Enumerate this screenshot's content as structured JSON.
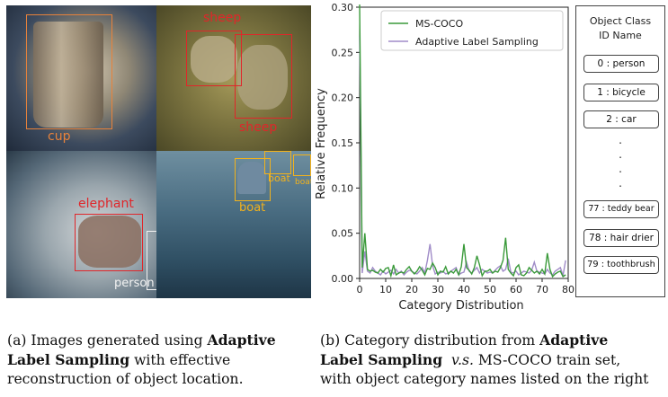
{
  "images_panel": {
    "tiles": [
      {
        "name": "cup",
        "detections": [
          {
            "label": "cup",
            "color": "#e8823a"
          }
        ]
      },
      {
        "name": "sheep",
        "detections": [
          {
            "label": "sheep",
            "color": "#e0262a"
          },
          {
            "label": "sheep",
            "color": "#e0262a"
          }
        ]
      },
      {
        "name": "elephant",
        "detections": [
          {
            "label": "elephant",
            "color": "#e0262a"
          },
          {
            "label": "person",
            "color": "#f2f2f2"
          }
        ]
      },
      {
        "name": "boat",
        "detections": [
          {
            "label": "boat",
            "color": "#f2b21c"
          },
          {
            "label": "boat",
            "color": "#f2b21c"
          },
          {
            "label": "boat",
            "color": "#f2b21c"
          }
        ]
      }
    ]
  },
  "chart_data": {
    "type": "line",
    "ylabel": "Relative Frequency",
    "xlabel": "Category Distribution",
    "xlim": [
      0,
      80
    ],
    "ylim": [
      0,
      0.3
    ],
    "xticks": [
      "0",
      "10",
      "20",
      "30",
      "40",
      "50",
      "60",
      "70",
      "80"
    ],
    "yticks": [
      "0.00",
      "0.05",
      "0.10",
      "0.15",
      "0.20",
      "0.25",
      "0.30"
    ],
    "legend_position": "top-right",
    "series": [
      {
        "name": "MS-COCO",
        "color": "#3a9a3a",
        "x": [
          0,
          1,
          2,
          3,
          4,
          5,
          6,
          7,
          8,
          9,
          10,
          11,
          12,
          13,
          14,
          15,
          16,
          17,
          18,
          19,
          20,
          21,
          22,
          23,
          24,
          25,
          26,
          27,
          28,
          29,
          30,
          31,
          32,
          33,
          34,
          35,
          36,
          37,
          38,
          39,
          40,
          41,
          42,
          43,
          44,
          45,
          46,
          47,
          48,
          49,
          50,
          51,
          52,
          53,
          54,
          55,
          56,
          57,
          58,
          59,
          60,
          61,
          62,
          63,
          64,
          65,
          66,
          67,
          68,
          69,
          70,
          71,
          72,
          73,
          74,
          75,
          76,
          77,
          78,
          79
        ],
        "values": [
          0.303,
          0.012,
          0.05,
          0.01,
          0.008,
          0.009,
          0.007,
          0.006,
          0.01,
          0.007,
          0.011,
          0.012,
          0.003,
          0.015,
          0.004,
          0.006,
          0.007,
          0.006,
          0.01,
          0.013,
          0.008,
          0.005,
          0.008,
          0.013,
          0.009,
          0.004,
          0.011,
          0.01,
          0.017,
          0.012,
          0.004,
          0.008,
          0.007,
          0.013,
          0.005,
          0.008,
          0.006,
          0.01,
          0.004,
          0.013,
          0.038,
          0.012,
          0.009,
          0.005,
          0.012,
          0.025,
          0.015,
          0.003,
          0.008,
          0.008,
          0.01,
          0.006,
          0.008,
          0.007,
          0.012,
          0.02,
          0.045,
          0.01,
          0.006,
          0.003,
          0.012,
          0.015,
          0.004,
          0.003,
          0.006,
          0.012,
          0.009,
          0.006,
          0.008,
          0.005,
          0.01,
          0.005,
          0.028,
          0.01,
          0.002,
          0.005,
          0.007,
          0.008,
          0.002,
          0.004
        ]
      },
      {
        "name": "Adaptive Label Sampling",
        "color": "#a08cc8",
        "x": [
          0,
          1,
          2,
          3,
          4,
          5,
          6,
          7,
          8,
          9,
          10,
          11,
          12,
          13,
          14,
          15,
          16,
          17,
          18,
          19,
          20,
          21,
          22,
          23,
          24,
          25,
          26,
          27,
          28,
          29,
          30,
          31,
          32,
          33,
          34,
          35,
          36,
          37,
          38,
          39,
          40,
          41,
          42,
          43,
          44,
          45,
          46,
          47,
          48,
          49,
          50,
          51,
          52,
          53,
          54,
          55,
          56,
          57,
          58,
          59,
          60,
          61,
          62,
          63,
          64,
          65,
          66,
          67,
          68,
          69,
          70,
          71,
          72,
          73,
          74,
          75,
          76,
          77,
          78,
          79
        ],
        "values": [
          0.268,
          0.006,
          0.03,
          0.008,
          0.006,
          0.012,
          0.008,
          0.006,
          0.004,
          0.008,
          0.005,
          0.007,
          0.009,
          0.005,
          0.01,
          0.006,
          0.008,
          0.004,
          0.007,
          0.009,
          0.008,
          0.006,
          0.005,
          0.008,
          0.012,
          0.006,
          0.02,
          0.038,
          0.014,
          0.005,
          0.007,
          0.006,
          0.008,
          0.005,
          0.006,
          0.008,
          0.01,
          0.012,
          0.004,
          0.006,
          0.007,
          0.018,
          0.008,
          0.006,
          0.009,
          0.012,
          0.006,
          0.01,
          0.008,
          0.006,
          0.007,
          0.006,
          0.009,
          0.012,
          0.014,
          0.008,
          0.01,
          0.022,
          0.007,
          0.006,
          0.008,
          0.004,
          0.006,
          0.008,
          0.007,
          0.006,
          0.009,
          0.018,
          0.008,
          0.007,
          0.006,
          0.005,
          0.01,
          0.006,
          0.004,
          0.008,
          0.01,
          0.012,
          0.003,
          0.02
        ]
      }
    ]
  },
  "class_legend": {
    "title_line1": "Object Class",
    "title_line2": "ID Name",
    "items_top": [
      "0 : person",
      "1 : bicycle",
      "2 : car"
    ],
    "ellipsis": ".",
    "items_bottom": [
      "77 : teddy bear",
      "78 : hair drier",
      "79 : toothbrush"
    ]
  },
  "captions": {
    "left": {
      "line1_pre": "(a) Images generated using ",
      "line1_bold": "Adaptive",
      "line2_bold": "Label Sampling",
      "line2_post": " with effective",
      "line3": "reconstruction of object location."
    },
    "right": {
      "line1_pre": "(b) Category distribution from ",
      "line1_bold": "Adaptive",
      "line2_bold": "Label Sampling",
      "line2_italic": "v.s.",
      "line2_post": " MS-COCO train set,",
      "line3": "with object category names listed on the right"
    }
  }
}
